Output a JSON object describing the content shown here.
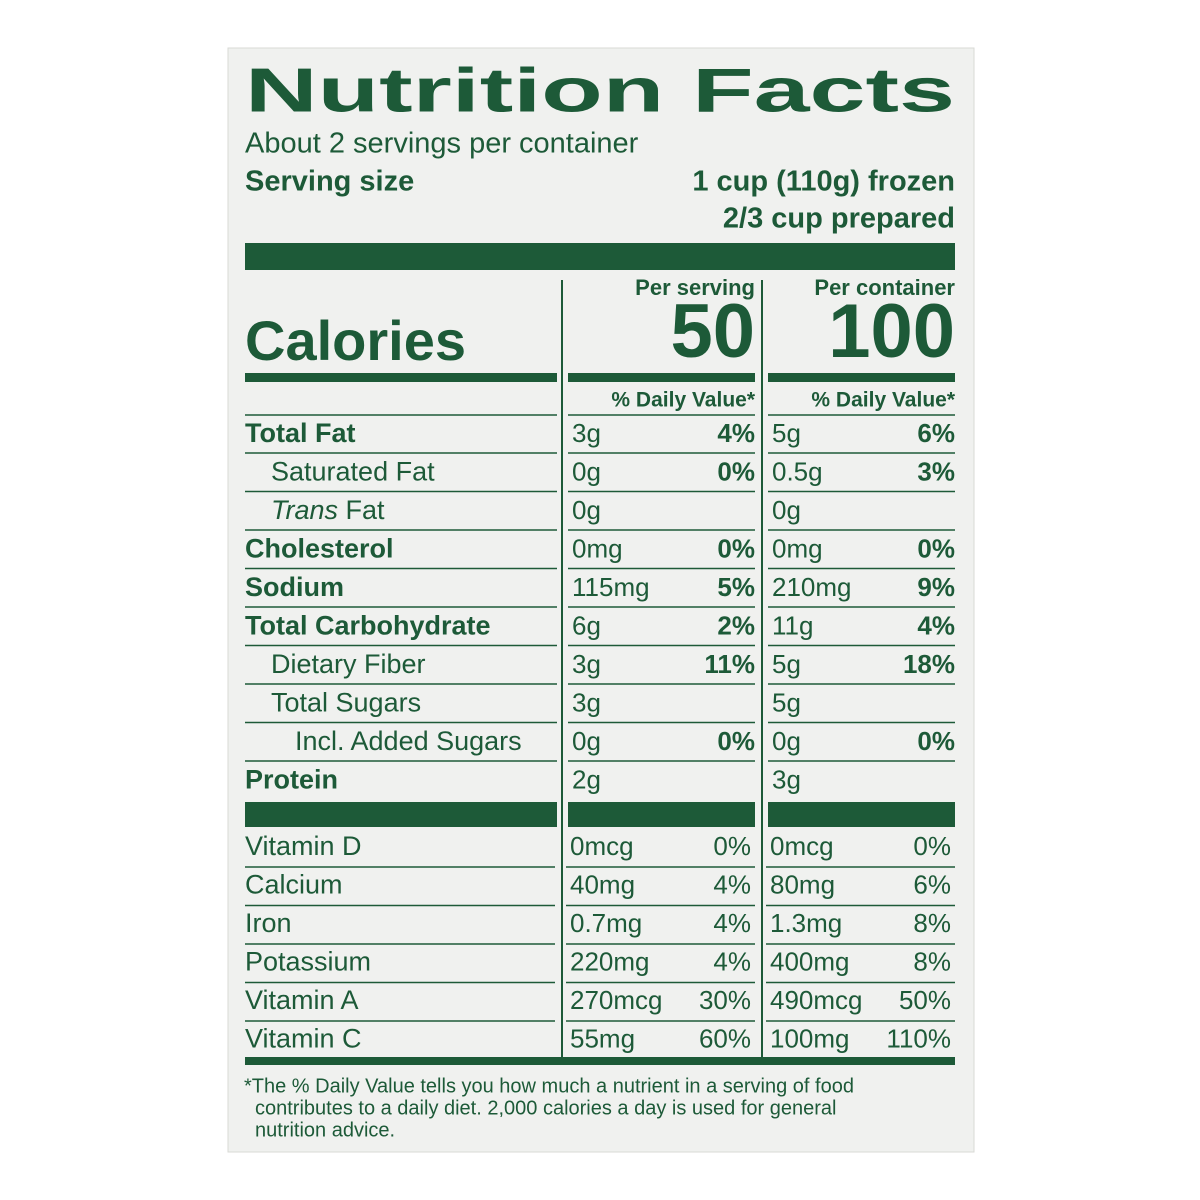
{
  "title": "Nutrition Facts",
  "servings": "About 2 servings per container",
  "serving_size": {
    "label": "Serving size",
    "lines": [
      "1 cup (110g) frozen",
      "2/3 cup prepared"
    ]
  },
  "columns": [
    "Per serving",
    "Per container"
  ],
  "calories": {
    "label": "Calories",
    "values": [
      50,
      100
    ]
  },
  "dv_headers": [
    "% Daily Value*",
    "% Daily Value*"
  ],
  "nutrients": [
    {
      "name": "Total Fat",
      "bold": true,
      "indent": 0,
      "values": [
        [
          "3g",
          "4%"
        ],
        [
          "5g",
          "6%"
        ]
      ]
    },
    {
      "name": "Saturated Fat",
      "bold": false,
      "indent": 1,
      "values": [
        [
          "0g",
          "0%"
        ],
        [
          "0.5g",
          "3%"
        ]
      ]
    },
    {
      "italic_prefix": "Trans",
      "name": "Fat",
      "bold": false,
      "indent": 1,
      "values": [
        [
          "0g",
          null
        ],
        [
          "0g",
          null
        ]
      ]
    },
    {
      "name": "Cholesterol",
      "bold": true,
      "indent": 0,
      "values": [
        [
          "0mg",
          "0%"
        ],
        [
          "0mg",
          "0%"
        ]
      ]
    },
    {
      "name": "Sodium",
      "bold": true,
      "indent": 0,
      "values": [
        [
          "115mg",
          "5%"
        ],
        [
          "210mg",
          "9%"
        ]
      ]
    },
    {
      "name": "Total Carbohydrate",
      "bold": true,
      "indent": 0,
      "values": [
        [
          "6g",
          "2%"
        ],
        [
          "11g",
          "4%"
        ]
      ]
    },
    {
      "name": "Dietary Fiber",
      "bold": false,
      "indent": 1,
      "values": [
        [
          "3g",
          "11%"
        ],
        [
          "5g",
          "18%"
        ]
      ]
    },
    {
      "name": "Total Sugars",
      "bold": false,
      "indent": 1,
      "values": [
        [
          "3g",
          null
        ],
        [
          "5g",
          null
        ]
      ]
    },
    {
      "name": "Incl. Added Sugars",
      "bold": false,
      "indent": 2,
      "values": [
        [
          "0g",
          "0%"
        ],
        [
          "0g",
          "0%"
        ]
      ]
    },
    {
      "name": "Protein",
      "bold": true,
      "indent": 0,
      "values": [
        [
          "2g",
          null
        ],
        [
          "3g",
          null
        ]
      ]
    }
  ],
  "vitamins": [
    {
      "name": "Vitamin D",
      "values": [
        [
          "0mcg",
          "0%"
        ],
        [
          "0mcg",
          "0%"
        ]
      ]
    },
    {
      "name": "Calcium",
      "values": [
        [
          "40mg",
          "4%"
        ],
        [
          "80mg",
          "6%"
        ]
      ]
    },
    {
      "name": "Iron",
      "values": [
        [
          "0.7mg",
          "4%"
        ],
        [
          "1.3mg",
          "8%"
        ]
      ]
    },
    {
      "name": "Potassium",
      "values": [
        [
          "220mg",
          "4%"
        ],
        [
          "400mg",
          "8%"
        ]
      ]
    },
    {
      "name": "Vitamin A",
      "values": [
        [
          "270mcg",
          "30%"
        ],
        [
          "490mcg",
          "50%"
        ]
      ]
    },
    {
      "name": "Vitamin C",
      "values": [
        [
          "55mg",
          "60%"
        ],
        [
          "100mg",
          "110%"
        ]
      ]
    }
  ],
  "footnote": [
    "*The % Daily Value tells you how much a nutrient in a serving of food",
    "contributes to a daily diet. 2,000 calories a day is used for general",
    "nutrition advice."
  ]
}
